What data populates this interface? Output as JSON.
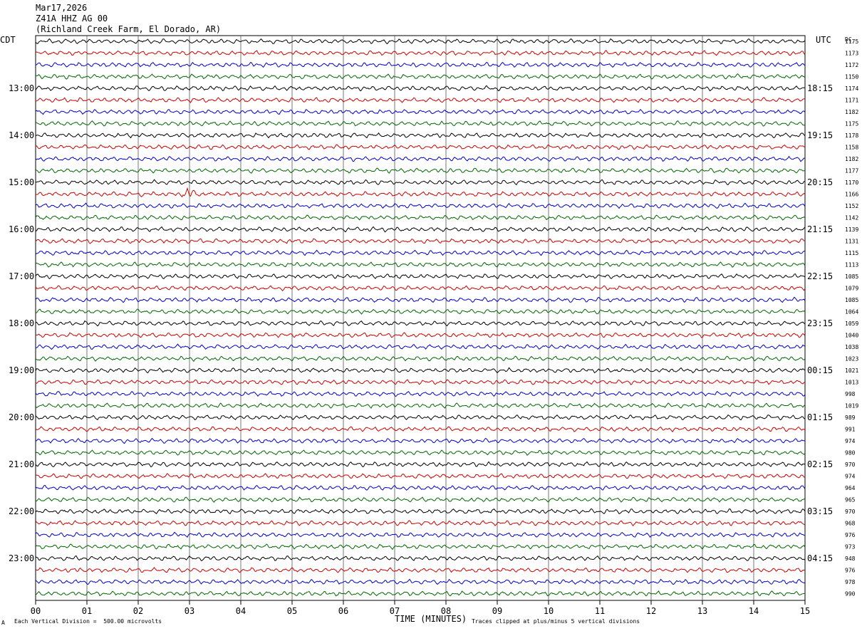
{
  "header": {
    "date": "Mar17,2026",
    "station": "Z41A HHZ AG 00",
    "location": "(Richland Creek Farm, El Dorado, AR)"
  },
  "left_zone": "CDT",
  "right_zone": "UTC",
  "dc_label": "DC",
  "footer": {
    "xlabel": "TIME (MINUTES)",
    "scale_note": "Each Vertical Division =  500.00 microvolts",
    "clip_note": "Traces clipped at plus/minus 5 vertical divisions",
    "corner_mark": "A"
  },
  "colors": {
    "cycle": [
      "#000000",
      "#cc0000",
      "#0000cc",
      "#006600"
    ],
    "grid": "#555555"
  },
  "chart_data": {
    "type": "line",
    "title": "",
    "xlabel": "TIME (MINUTES)",
    "xlim": [
      0,
      15
    ],
    "x_ticks": [
      "00",
      "01",
      "02",
      "03",
      "04",
      "05",
      "06",
      "07",
      "08",
      "09",
      "10",
      "11",
      "12",
      "13",
      "14",
      "15"
    ],
    "trace_interval_minutes": 15,
    "trace_count": 48,
    "left_hour_labels": [
      {
        "trace": 4,
        "label": "13:00"
      },
      {
        "trace": 8,
        "label": "14:00"
      },
      {
        "trace": 12,
        "label": "15:00"
      },
      {
        "trace": 16,
        "label": "16:00"
      },
      {
        "trace": 20,
        "label": "17:00"
      },
      {
        "trace": 24,
        "label": "18:00"
      },
      {
        "trace": 28,
        "label": "19:00"
      },
      {
        "trace": 32,
        "label": "20:00"
      },
      {
        "trace": 36,
        "label": "21:00"
      },
      {
        "trace": 40,
        "label": "22:00"
      },
      {
        "trace": 44,
        "label": "23:00"
      }
    ],
    "right_hour_labels": [
      {
        "trace": 4,
        "label": "18:15"
      },
      {
        "trace": 8,
        "label": "19:15"
      },
      {
        "trace": 12,
        "label": "20:15"
      },
      {
        "trace": 16,
        "label": "21:15"
      },
      {
        "trace": 20,
        "label": "22:15"
      },
      {
        "trace": 24,
        "label": "23:15"
      },
      {
        "trace": 28,
        "label": "00:15"
      },
      {
        "trace": 32,
        "label": "01:15"
      },
      {
        "trace": 36,
        "label": "02:15"
      },
      {
        "trace": 40,
        "label": "03:15"
      },
      {
        "trace": 44,
        "label": "04:15"
      }
    ],
    "dc_offsets": [
      1175,
      1173,
      1172,
      1150,
      1174,
      1171,
      1182,
      1175,
      1178,
      1158,
      1182,
      1177,
      1170,
      1166,
      1152,
      1142,
      1139,
      1131,
      1115,
      1113,
      1085,
      1079,
      1085,
      1064,
      1059,
      1040,
      1038,
      1023,
      1021,
      1013,
      998,
      1019,
      989,
      991,
      974,
      980,
      970,
      974,
      964,
      965,
      970,
      968,
      976,
      973,
      948,
      976,
      978,
      990
    ],
    "events": [
      {
        "trace": 13,
        "minute": 3.0,
        "amplitude": 1.8
      }
    ]
  }
}
